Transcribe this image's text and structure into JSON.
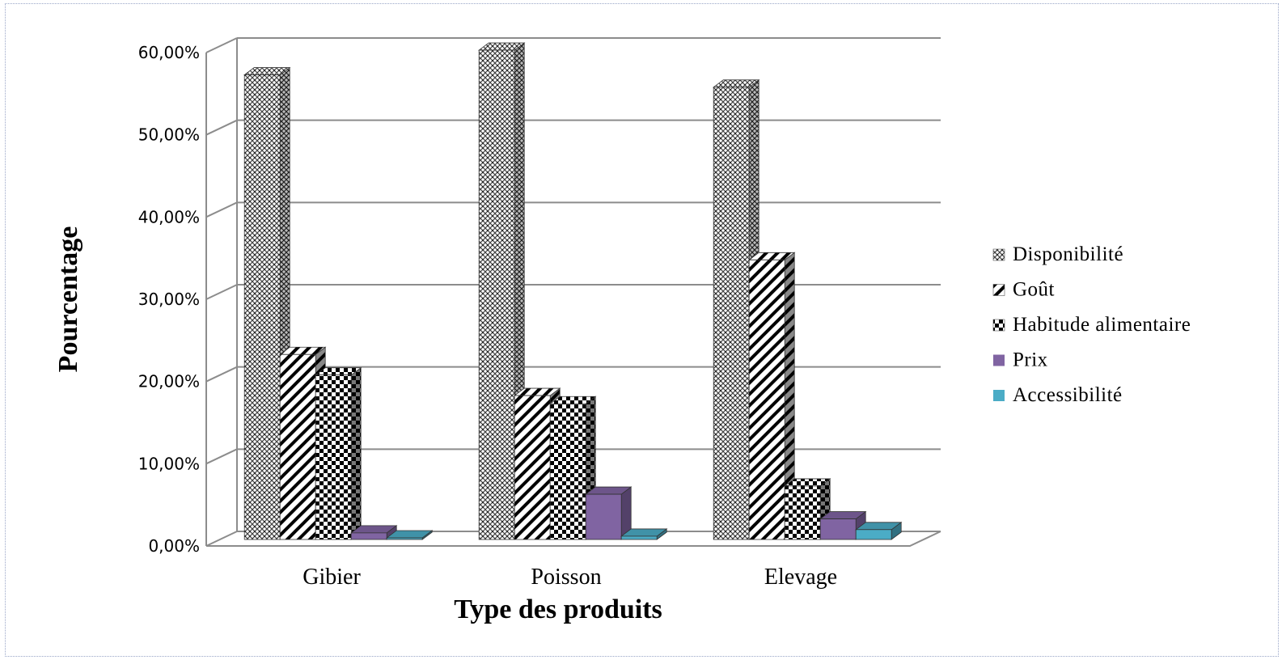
{
  "chart_data": {
    "type": "bar",
    "title": "",
    "xlabel": "Type des produits",
    "ylabel": "Pourcentage",
    "ylim": [
      0,
      60
    ],
    "y_ticks": [
      "0,00%",
      "10,00%",
      "20,00%",
      "30,00%",
      "40,00%",
      "50,00%",
      "60,00%"
    ],
    "categories": [
      "Gibier",
      "Poisson",
      "Elevage"
    ],
    "grid": true,
    "legend_position": "right",
    "series": [
      {
        "name": "Disponibilité",
        "values": [
          56.5,
          59.5,
          55.0
        ],
        "color": "#cfcfcf",
        "pattern": "crosshatch"
      },
      {
        "name": "Goût",
        "values": [
          22.5,
          17.5,
          34.0
        ],
        "color": "#ffffff",
        "pattern": "diagonal"
      },
      {
        "name": "Habitude alimentaire",
        "values": [
          20.0,
          16.5,
          6.5
        ],
        "color": "#ffffff",
        "pattern": "checker"
      },
      {
        "name": "Prix",
        "values": [
          0.8,
          5.5,
          2.5
        ],
        "color": "#8064a2",
        "pattern": "solid"
      },
      {
        "name": "Accessibilité",
        "values": [
          0.2,
          0.4,
          1.2
        ],
        "color": "#4bacc6",
        "pattern": "solid"
      }
    ]
  }
}
